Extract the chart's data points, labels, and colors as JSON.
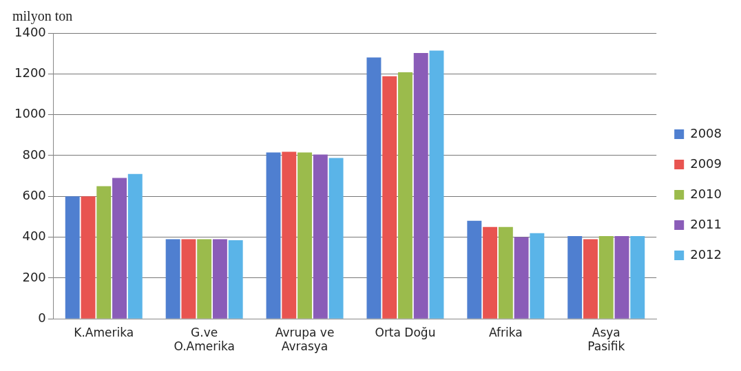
{
  "chart_data": {
    "type": "bar",
    "ylabel": "milyon ton",
    "categories": [
      "K.Amerika",
      "G.ve\nO.Amerika",
      "Avrupa ve\nAvrasya",
      "Orta Doğu",
      "Afrika",
      "Asya\nPasifik"
    ],
    "series": [
      {
        "name": "2008",
        "color": "#4f7fd0",
        "values": [
          600,
          390,
          815,
          1280,
          480,
          405
        ]
      },
      {
        "name": "2009",
        "color": "#e85450",
        "values": [
          600,
          390,
          818,
          1188,
          450,
          390
        ]
      },
      {
        "name": "2010",
        "color": "#9bbb4c",
        "values": [
          650,
          390,
          815,
          1208,
          450,
          405
        ]
      },
      {
        "name": "2011",
        "color": "#8a5cb8",
        "values": [
          690,
          390,
          805,
          1302,
          400,
          405
        ]
      },
      {
        "name": "2012",
        "color": "#5ab4e8",
        "values": [
          710,
          385,
          788,
          1314,
          420,
          405
        ]
      }
    ],
    "ylim": [
      0,
      1400
    ],
    "yticks": [
      0,
      200,
      400,
      600,
      800,
      1000,
      1200,
      1400
    ],
    "grid": "y",
    "legend": "right"
  }
}
